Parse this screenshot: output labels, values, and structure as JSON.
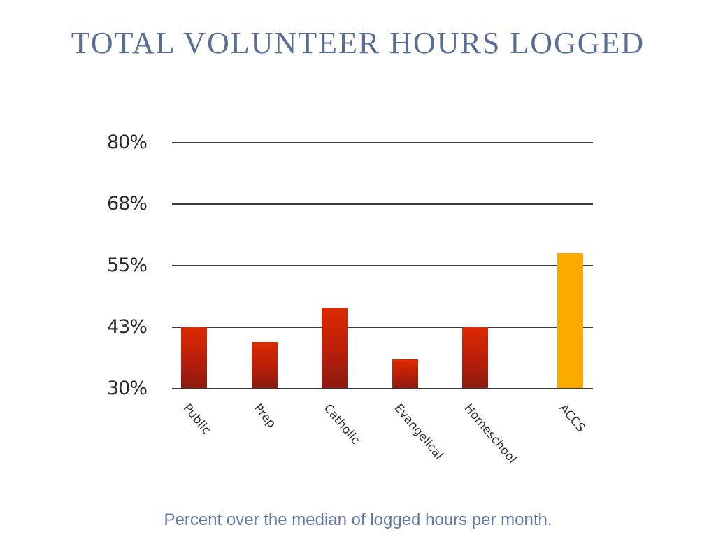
{
  "title": "TOTAL VOLUNTEER HOURS LOGGED",
  "caption": "Percent over the median of logged hours per month.",
  "colors": {
    "bar": "#c0220a",
    "highlight": "#fbab00",
    "title": "#5a6e95",
    "caption": "#6478a8"
  },
  "y_ticks": [
    "80%",
    "68%",
    "55%",
    "43%",
    "30%"
  ],
  "categories": [
    "Public",
    "Prep",
    "Catholic",
    "Evangelical",
    "Homeschool",
    "ACCS"
  ],
  "chart_data": {
    "type": "bar",
    "title": "TOTAL VOLUNTEER HOURS LOGGED",
    "subtitle": "Percent over the median of logged hours per month.",
    "xlabel": "",
    "ylabel": "",
    "categories": [
      "Public",
      "Prep",
      "Catholic",
      "Evangelical",
      "Homeschool",
      "ACCS"
    ],
    "values": [
      42.5,
      39.5,
      46.5,
      36,
      42.5,
      57.5
    ],
    "unit": "%",
    "y_ticks": [
      30,
      43,
      55,
      68,
      80
    ],
    "ylim": [
      30,
      80
    ],
    "grid": true,
    "legend": null,
    "highlight": "ACCS"
  }
}
